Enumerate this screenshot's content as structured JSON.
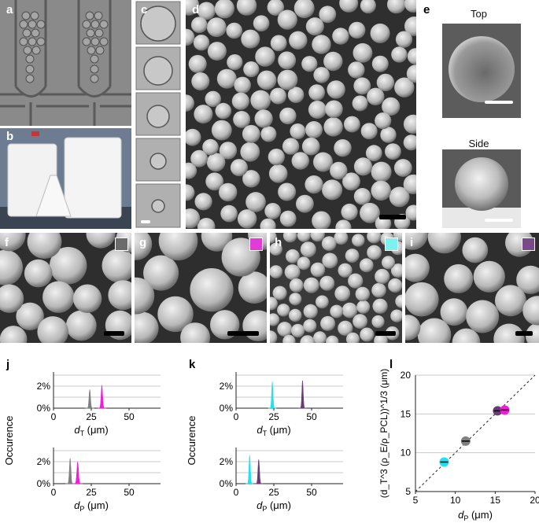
{
  "labels": {
    "a": "a",
    "b": "b",
    "c": "c",
    "d": "d",
    "e": "e",
    "f": "f",
    "g": "g",
    "h": "h",
    "i": "i",
    "j": "j",
    "k": "k",
    "l": "l"
  },
  "panel_e": {
    "top_label": "Top",
    "side_label": "Side"
  },
  "swatches": {
    "f": "#6b6b6b",
    "g": "#e23bd6",
    "h": "#7ff0f0",
    "i": "#7a4a88"
  },
  "colors": {
    "gray": "#808080",
    "magenta": "#ee1fd6",
    "cyan": "#22e0ee",
    "purple": "#6a3a78"
  },
  "chart_data": [
    {
      "panel": "j-top",
      "type": "area",
      "xlabel_main": "d",
      "xlabel_sub": "T",
      "xlabel_unit": " (μm)",
      "ylabel": "Occurence",
      "xlim": [
        0,
        50
      ],
      "ylim": [
        0,
        3
      ],
      "xticks": [
        "0",
        "25",
        "50"
      ],
      "yticks": [
        "0%",
        "2%"
      ],
      "series": [
        {
          "color": "#808080",
          "peak_x": 24,
          "peak_y": 1.7,
          "width": 1.0
        },
        {
          "color": "#ee1fd6",
          "peak_x": 32,
          "peak_y": 2.1,
          "width": 1.0
        }
      ]
    },
    {
      "panel": "j-bottom",
      "type": "area",
      "xlabel_main": "d",
      "xlabel_sub": "P",
      "xlabel_unit": " (μm)",
      "xlim": [
        0,
        50
      ],
      "ylim": [
        0,
        3
      ],
      "xticks": [
        "0",
        "25",
        "50"
      ],
      "yticks": [
        "0%",
        "2%"
      ],
      "series": [
        {
          "color": "#808080",
          "peak_x": 11,
          "peak_y": 2.3,
          "width": 1.0
        },
        {
          "color": "#ee1fd6",
          "peak_x": 16,
          "peak_y": 2.0,
          "width": 1.1
        }
      ]
    },
    {
      "panel": "k-top",
      "type": "area",
      "xlabel_main": "d",
      "xlabel_sub": "T",
      "xlabel_unit": " (μm)",
      "ylabel": "Occurence",
      "xlim": [
        0,
        50
      ],
      "ylim": [
        0,
        3
      ],
      "xticks": [
        "0",
        "25",
        "50"
      ],
      "yticks": [
        "0%",
        "2%"
      ],
      "series": [
        {
          "color": "#22e0ee",
          "peak_x": 24,
          "peak_y": 2.4,
          "width": 0.9
        },
        {
          "color": "#6a3a78",
          "peak_x": 44,
          "peak_y": 2.5,
          "width": 0.9
        }
      ]
    },
    {
      "panel": "k-bottom",
      "type": "area",
      "xlabel_main": "d",
      "xlabel_sub": "P",
      "xlabel_unit": " (μm)",
      "xlim": [
        0,
        50
      ],
      "ylim": [
        0,
        3
      ],
      "xticks": [
        "0",
        "25",
        "50"
      ],
      "yticks": [
        "0%",
        "2%"
      ],
      "series": [
        {
          "color": "#22e0ee",
          "peak_x": 9,
          "peak_y": 2.6,
          "width": 0.9
        },
        {
          "color": "#6a3a78",
          "peak_x": 15,
          "peak_y": 2.2,
          "width": 1.0
        }
      ]
    },
    {
      "panel": "l",
      "type": "scatter",
      "xlabel_main": "d",
      "xlabel_sub": "P",
      "xlabel_unit": " (μm)",
      "ylabel": "(d_T^3 (ρ_E/ρ_PCL))^1/3 (μm)",
      "xlim": [
        5,
        20
      ],
      "ylim": [
        5,
        20
      ],
      "xticks": [
        "5",
        "10",
        "15",
        "20"
      ],
      "yticks": [
        "5",
        "10",
        "15",
        "20"
      ],
      "reference_line": "y = x",
      "points": [
        {
          "x": 8.6,
          "y": 8.8,
          "color": "#22e0ee"
        },
        {
          "x": 11.3,
          "y": 11.5,
          "color": "#808080"
        },
        {
          "x": 15.3,
          "y": 15.4,
          "color": "#6a3a78"
        },
        {
          "x": 16.2,
          "y": 15.5,
          "color": "#ee1fd6"
        }
      ]
    }
  ]
}
